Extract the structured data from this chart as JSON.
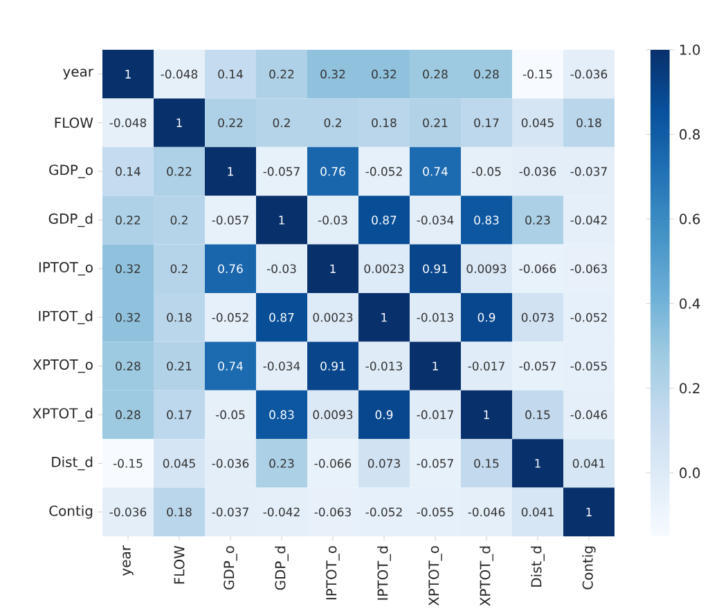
{
  "chart_data": {
    "type": "heatmap",
    "categories": [
      "year",
      "FLOW",
      "GDP_o",
      "GDP_d",
      "IPTOT_o",
      "IPTOT_d",
      "XPTOT_o",
      "XPTOT_d",
      "Dist_d",
      "Contig"
    ],
    "y_categories": [
      "year",
      "FLOW",
      "GDP_o",
      "GDP_d",
      "IPTOT_o",
      "IPTOT_d",
      "XPTOT_o",
      "XPTOT_d",
      "Dist_d",
      "Contig"
    ],
    "cells": [
      [
        1,
        -0.048,
        0.14,
        0.22,
        0.32,
        0.32,
        0.28,
        0.28,
        -0.15,
        -0.036
      ],
      [
        -0.048,
        1,
        0.22,
        0.2,
        0.2,
        0.18,
        0.21,
        0.17,
        0.045,
        0.18
      ],
      [
        0.14,
        0.22,
        1,
        -0.057,
        0.76,
        -0.052,
        0.74,
        -0.05,
        -0.036,
        -0.037
      ],
      [
        0.22,
        0.2,
        -0.057,
        1,
        -0.03,
        0.87,
        -0.034,
        0.83,
        0.23,
        -0.042
      ],
      [
        0.32,
        0.2,
        0.76,
        -0.03,
        1,
        0.0023,
        0.91,
        0.0093,
        -0.066,
        -0.063
      ],
      [
        0.32,
        0.18,
        -0.052,
        0.87,
        0.0023,
        1,
        -0.013,
        0.9,
        0.073,
        -0.052
      ],
      [
        0.28,
        0.21,
        0.74,
        -0.034,
        0.91,
        -0.013,
        1,
        -0.017,
        -0.057,
        -0.055
      ],
      [
        0.28,
        0.17,
        -0.05,
        0.83,
        0.0093,
        0.9,
        -0.017,
        1,
        0.15,
        -0.046
      ],
      [
        -0.15,
        0.045,
        -0.036,
        0.23,
        -0.066,
        0.073,
        -0.057,
        0.15,
        1,
        0.041
      ],
      [
        -0.036,
        0.18,
        -0.037,
        -0.042,
        -0.063,
        -0.052,
        -0.055,
        -0.046,
        0.041,
        1
      ]
    ],
    "clim": [
      -0.15,
      1
    ],
    "cticks": [
      {
        "value": 0,
        "label": "0.0"
      },
      {
        "value": 0.2,
        "label": "0.2"
      },
      {
        "value": 0.4,
        "label": "0.4"
      },
      {
        "value": 0.6,
        "label": "0.6"
      },
      {
        "value": 0.8,
        "label": "0.8"
      },
      {
        "value": 1,
        "label": "1.0"
      }
    ],
    "data_labels": true
  }
}
